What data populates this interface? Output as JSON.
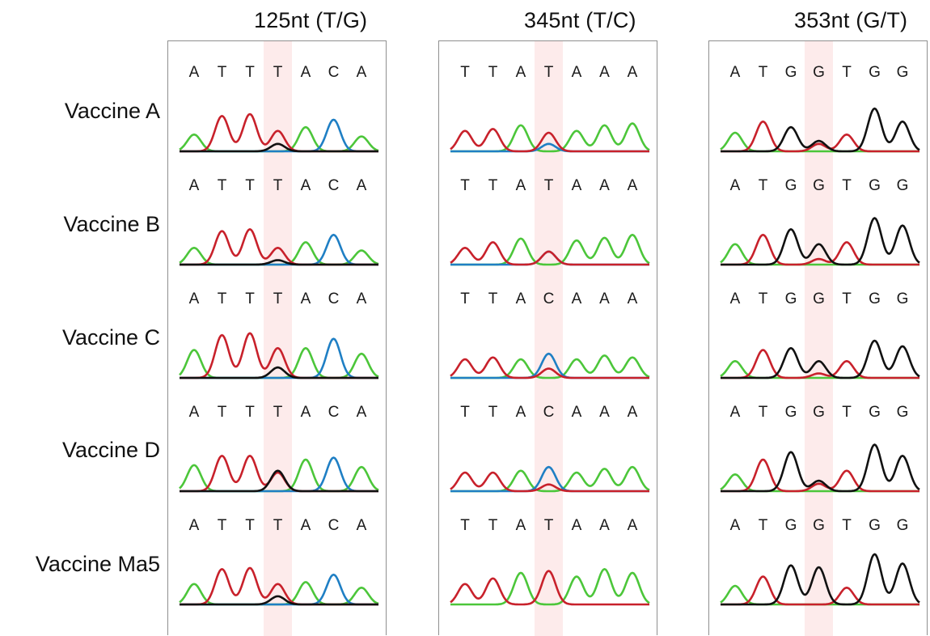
{
  "columns": [
    {
      "title": "125nt (T/G)",
      "sites": 7
    },
    {
      "title": "345nt (T/C)",
      "sites": 7
    },
    {
      "title": "353nt (G/T)",
      "sites": 7
    }
  ],
  "rows": [
    {
      "label": "Vaccine A"
    },
    {
      "label": "Vaccine B"
    },
    {
      "label": "Vaccine C"
    },
    {
      "label": "Vaccine D"
    },
    {
      "label": "Vaccine Ma5"
    }
  ],
  "colors": {
    "A": "#4cc63a",
    "T": "#c8212b",
    "C": "#1f7fc4",
    "G": "#111111",
    "highlight": "#fdebeb",
    "border": "#8f8f8f"
  },
  "sequences": [
    [
      {
        "letters": [
          "A",
          "T",
          "T",
          "T",
          "A",
          "C",
          "A"
        ],
        "peaks": [
          [
            0.45
          ],
          [
            0.95
          ],
          [
            1.0
          ],
          [
            0.55,
            {
              "b": "G",
              "h": 0.2
            }
          ],
          [
            0.65
          ],
          [
            0.85
          ],
          [
            0.4
          ]
        ]
      },
      {
        "letters": [
          "A",
          "T",
          "T",
          "T",
          "A",
          "C",
          "A"
        ],
        "peaks": [
          [
            0.45
          ],
          [
            0.9
          ],
          [
            0.95
          ],
          [
            0.45,
            {
              "b": "G",
              "h": 0.12
            }
          ],
          [
            0.6
          ],
          [
            0.8
          ],
          [
            0.38
          ]
        ]
      },
      {
        "letters": [
          "A",
          "T",
          "T",
          "T",
          "A",
          "C",
          "A"
        ],
        "peaks": [
          [
            0.75
          ],
          [
            1.15
          ],
          [
            1.2
          ],
          [
            0.8,
            {
              "b": "G",
              "h": 0.28
            }
          ],
          [
            0.8
          ],
          [
            1.05
          ],
          [
            0.65
          ]
        ]
      },
      {
        "letters": [
          "A",
          "T",
          "T",
          "T",
          "A",
          "C",
          "A"
        ],
        "peaks": [
          [
            0.7
          ],
          [
            0.95
          ],
          [
            0.95
          ],
          [
            0.5,
            {
              "b": "G",
              "h": 0.55
            }
          ],
          [
            0.85
          ],
          [
            0.9
          ],
          [
            0.65
          ]
        ]
      },
      {
        "letters": [
          "A",
          "T",
          "T",
          "T",
          "A",
          "C",
          "A"
        ],
        "peaks": [
          [
            0.55
          ],
          [
            0.95
          ],
          [
            0.98
          ],
          [
            0.55,
            {
              "b": "G",
              "h": 0.22
            }
          ],
          [
            0.6
          ],
          [
            0.8
          ],
          [
            0.45
          ]
        ]
      }
    ],
    [
      {
        "letters": [
          "T",
          "T",
          "A",
          "T",
          "A",
          "A",
          "A"
        ],
        "peaks": [
          [
            0.55
          ],
          [
            0.6
          ],
          [
            0.7
          ],
          [
            0.5,
            {
              "b": "C",
              "h": 0.2
            }
          ],
          [
            0.55
          ],
          [
            0.7
          ],
          [
            0.75
          ]
        ]
      },
      {
        "letters": [
          "T",
          "T",
          "A",
          "T",
          "A",
          "A",
          "A"
        ],
        "peaks": [
          [
            0.45
          ],
          [
            0.6
          ],
          [
            0.7
          ],
          [
            0.35,
            {
              "b": "C",
              "h": 0.35
            }
          ],
          [
            0.65
          ],
          [
            0.72
          ],
          [
            0.8
          ]
        ]
      },
      {
        "letters": [
          "T",
          "T",
          "A",
          "C",
          "A",
          "A",
          "A"
        ],
        "peaks": [
          [
            0.5
          ],
          [
            0.55
          ],
          [
            0.5
          ],
          [
            0.65,
            {
              "b": "T",
              "h": 0.25
            }
          ],
          [
            0.5
          ],
          [
            0.6
          ],
          [
            0.55
          ]
        ]
      },
      {
        "letters": [
          "T",
          "T",
          "A",
          "C",
          "A",
          "A",
          "A"
        ],
        "peaks": [
          [
            0.5
          ],
          [
            0.5
          ],
          [
            0.55
          ],
          [
            0.65,
            {
              "b": "T",
              "h": 0.18
            }
          ],
          [
            0.5
          ],
          [
            0.6
          ],
          [
            0.65
          ]
        ]
      },
      {
        "letters": [
          "T",
          "T",
          "A",
          "T",
          "A",
          "A",
          "A"
        ],
        "peaks": [
          [
            0.55
          ],
          [
            0.7
          ],
          [
            0.85
          ],
          [
            0.9
          ],
          [
            0.75
          ],
          [
            0.95
          ],
          [
            0.85
          ]
        ]
      }
    ],
    [
      {
        "letters": [
          "A",
          "T",
          "G",
          "G",
          "T",
          "G",
          "G"
        ],
        "peaks": [
          [
            0.5
          ],
          [
            0.8
          ],
          [
            0.65
          ],
          [
            0.28,
            {
              "b": "T",
              "h": 0.2
            }
          ],
          [
            0.45
          ],
          [
            1.15
          ],
          [
            0.8
          ]
        ]
      },
      {
        "letters": [
          "A",
          "T",
          "G",
          "G",
          "T",
          "G",
          "G"
        ],
        "peaks": [
          [
            0.55
          ],
          [
            0.8
          ],
          [
            0.95
          ],
          [
            0.55,
            {
              "b": "T",
              "h": 0.15
            }
          ],
          [
            0.6
          ],
          [
            1.25
          ],
          [
            1.05
          ]
        ]
      },
      {
        "letters": [
          "A",
          "T",
          "G",
          "G",
          "T",
          "G",
          "G"
        ],
        "peaks": [
          [
            0.45
          ],
          [
            0.75
          ],
          [
            0.8
          ],
          [
            0.45,
            {
              "b": "T",
              "h": 0.12
            }
          ],
          [
            0.45
          ],
          [
            1.0
          ],
          [
            0.85
          ]
        ]
      },
      {
        "letters": [
          "A",
          "T",
          "G",
          "G",
          "T",
          "G",
          "G"
        ],
        "peaks": [
          [
            0.45
          ],
          [
            0.85
          ],
          [
            1.05
          ],
          [
            0.28,
            {
              "b": "T",
              "h": 0.2
            }
          ],
          [
            0.55
          ],
          [
            1.25
          ],
          [
            0.95
          ]
        ]
      },
      {
        "letters": [
          "A",
          "T",
          "G",
          "G",
          "T",
          "G",
          "G"
        ],
        "peaks": [
          [
            0.5
          ],
          [
            0.75
          ],
          [
            1.05
          ],
          [
            1.0
          ],
          [
            0.45
          ],
          [
            1.35
          ],
          [
            1.1
          ]
        ]
      }
    ]
  ]
}
